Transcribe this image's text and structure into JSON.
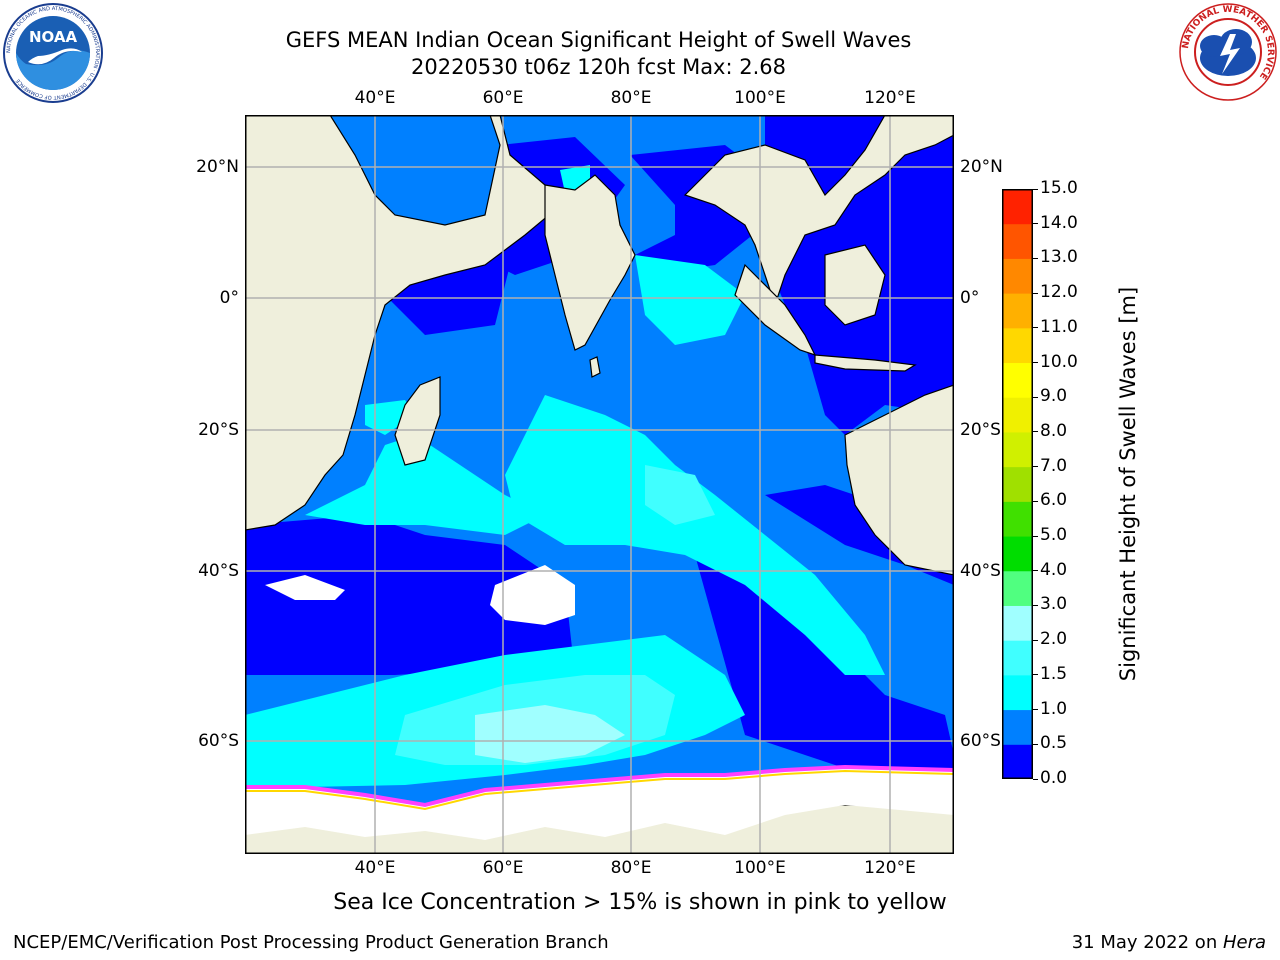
{
  "header": {
    "title_line1": "GEFS MEAN Indian Ocean Significant Height of Swell Waves",
    "title_line2": "20220530 t06z 120h fcst   Max: 2.68"
  },
  "logos": {
    "noaa": {
      "text": "NOAA",
      "ring_text": "NATIONAL OCEANIC AND ATMOSPHERIC ADMINISTRATION · U.S. DEPARTMENT OF COMMERCE"
    },
    "nws": {
      "ring_text": "NATIONAL WEATHER SERVICE"
    }
  },
  "chart_data": {
    "type": "heatmap",
    "title": "GEFS MEAN Indian Ocean Significant Height of Swell Waves",
    "max_value": 2.68,
    "lon_range": [
      20,
      130
    ],
    "lat_range": [
      -72,
      28
    ],
    "lon_ticks": [
      "40°E",
      "60°E",
      "80°E",
      "100°E",
      "120°E"
    ],
    "lat_ticks": [
      "20°N",
      "0°",
      "20°S",
      "40°S",
      "60°S"
    ],
    "grid": true,
    "colorbar": {
      "label": "Significant Height of Swell Waves [m]",
      "ticks": [
        "0.0",
        "0.5",
        "1.0",
        "1.5",
        "2.0",
        "3.0",
        "4.0",
        "5.0",
        "6.0",
        "7.0",
        "8.0",
        "9.0",
        "10.0",
        "11.0",
        "12.0",
        "13.0",
        "14.0",
        "15.0"
      ],
      "colors": [
        "#0000ff",
        "#0080ff",
        "#00ffff",
        "#40ffff",
        "#a0ffff",
        "#50ff80",
        "#00dd00",
        "#40e000",
        "#a0e000",
        "#d0f000",
        "#f0f000",
        "#ffff00",
        "#ffd800",
        "#ffb000",
        "#ff8800",
        "#ff5500",
        "#ff2200"
      ]
    },
    "colors": {
      "land": "#efefdc",
      "ice": "#ffffff",
      "ice_edge": "#ff40ff"
    }
  },
  "subtitle": "Sea Ice Concentration > 15% is shown in pink to yellow",
  "footer": {
    "left": "NCEP/EMC/Verification Post Processing Product Generation Branch",
    "date": "31 May 2022 on ",
    "machine": "Hera"
  }
}
